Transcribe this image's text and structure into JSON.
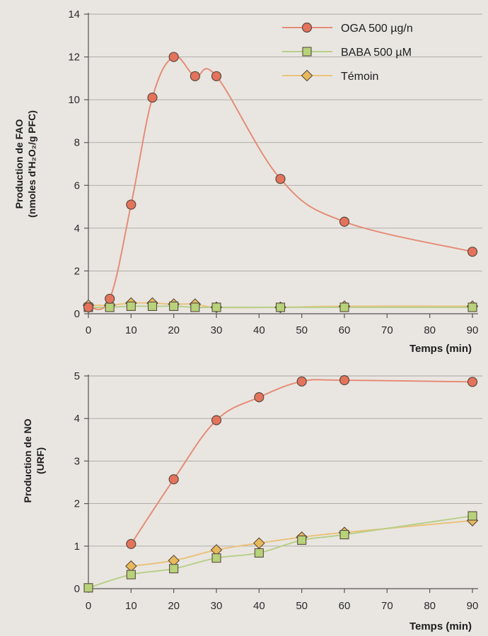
{
  "colors": {
    "oga": "#e4735c",
    "oga_line": "#e58c77",
    "baba": "#b7d27a",
    "baba_line": "#b8cf8a",
    "temoin": "#e8b95b",
    "temoin_line": "#ebc27c"
  },
  "chart_data": [
    {
      "type": "line",
      "ylabel_line1": "Production de FAO",
      "ylabel_line2": "(nmoles d'H₂O₂/g PFC)",
      "xlabel": "Temps (min)",
      "xlim": [
        0,
        90
      ],
      "ylim": [
        0,
        14
      ],
      "xticks": [
        0,
        10,
        20,
        30,
        40,
        50,
        60,
        70,
        80,
        90
      ],
      "yticks": [
        0,
        2,
        4,
        6,
        8,
        10,
        12,
        14
      ],
      "grid": "horizontal",
      "legend": "top-right",
      "series": [
        {
          "name": "OGA 500 µg/n",
          "marker": "circle",
          "x": [
            0,
            5,
            10,
            15,
            20,
            25,
            30,
            45,
            60,
            90
          ],
          "y": [
            0.3,
            0.7,
            5.1,
            10.1,
            12.0,
            11.1,
            11.1,
            6.3,
            4.3,
            2.9
          ]
        },
        {
          "name": "BABA 500 µM",
          "marker": "square",
          "x": [
            0,
            5,
            10,
            15,
            20,
            25,
            30,
            45,
            60,
            90
          ],
          "y": [
            0.3,
            0.3,
            0.35,
            0.35,
            0.35,
            0.3,
            0.3,
            0.3,
            0.3,
            0.3
          ]
        },
        {
          "name": "Témoin",
          "marker": "diamond",
          "x": [
            0,
            5,
            10,
            15,
            20,
            25,
            30,
            45,
            60,
            90
          ],
          "y": [
            0.4,
            0.4,
            0.5,
            0.5,
            0.45,
            0.45,
            0.3,
            0.3,
            0.35,
            0.35
          ]
        }
      ]
    },
    {
      "type": "line",
      "ylabel_line1": "Production de NO",
      "ylabel_line2": "(URF)",
      "xlabel": "Temps (min)",
      "xlim": [
        0,
        90
      ],
      "ylim": [
        0,
        5
      ],
      "xticks": [
        0,
        10,
        20,
        30,
        40,
        50,
        60,
        70,
        80,
        90
      ],
      "yticks": [
        0,
        1,
        2,
        3,
        4,
        5
      ],
      "grid": "horizontal",
      "series": [
        {
          "name": "OGA 500 µg/n",
          "marker": "circle",
          "x": [
            10,
            20,
            30,
            40,
            50,
            60,
            90
          ],
          "y": [
            1.05,
            2.57,
            3.96,
            4.5,
            4.87,
            4.9,
            4.86
          ]
        },
        {
          "name": "BABA 500 µM",
          "marker": "square",
          "x": [
            0,
            10,
            20,
            30,
            40,
            50,
            60,
            90
          ],
          "y": [
            0.02,
            0.33,
            0.47,
            0.72,
            0.84,
            1.14,
            1.27,
            1.71
          ]
        },
        {
          "name": "Témoin",
          "marker": "diamond",
          "x": [
            10,
            20,
            30,
            40,
            50,
            60,
            90
          ],
          "y": [
            0.53,
            0.66,
            0.91,
            1.07,
            1.21,
            1.32,
            1.6
          ]
        }
      ]
    }
  ]
}
